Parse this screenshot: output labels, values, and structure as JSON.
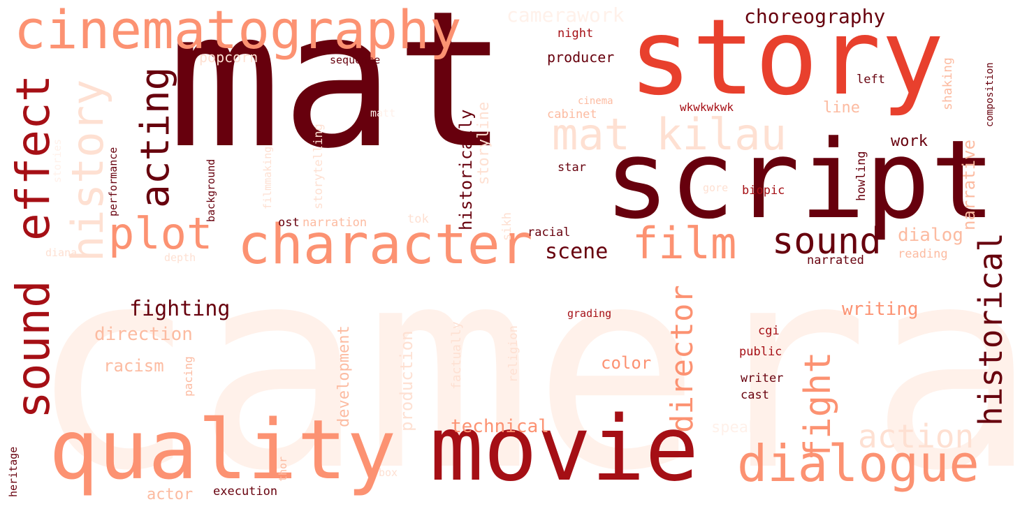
{
  "palette": {
    "darkest": "#67000d",
    "dark": "#a50f15",
    "red": "#e8402d",
    "salmon": "#fc9272",
    "light": "#fcbba1",
    "pale": "#fee0d2",
    "faint": "#fff1ea"
  },
  "words": [
    {
      "text": "camera",
      "color": "faint"
    },
    {
      "text": "mat",
      "color": "darkest"
    },
    {
      "text": "story",
      "color": "red"
    },
    {
      "text": "script",
      "color": "darkest"
    },
    {
      "text": "cinematography",
      "color": "salmon"
    },
    {
      "text": "movie",
      "color": "dark"
    },
    {
      "text": "quality",
      "color": "salmon"
    },
    {
      "text": "dialogue",
      "color": "salmon"
    },
    {
      "text": "character",
      "color": "salmon"
    },
    {
      "text": "effect",
      "color": "dark"
    },
    {
      "text": "sound",
      "color": "dark"
    },
    {
      "text": "film",
      "color": "salmon"
    },
    {
      "text": "plot",
      "color": "salmon"
    },
    {
      "text": "history",
      "color": "pale"
    },
    {
      "text": "mat kilau",
      "color": "pale"
    },
    {
      "text": "acting",
      "color": "darkest"
    },
    {
      "text": "sound",
      "color": "darkest"
    },
    {
      "text": "fight",
      "color": "salmon"
    },
    {
      "text": "historical",
      "color": "darkest"
    },
    {
      "text": "director",
      "color": "salmon"
    },
    {
      "text": "action",
      "color": "pale"
    },
    {
      "text": "choreography",
      "color": "darkest"
    },
    {
      "text": "camerawork",
      "color": "faint"
    },
    {
      "text": "fighting",
      "color": "darkest"
    },
    {
      "text": "scene",
      "color": "darkest"
    },
    {
      "text": "dialog",
      "color": "light"
    },
    {
      "text": "writing",
      "color": "salmon"
    },
    {
      "text": "narrative",
      "color": "light"
    },
    {
      "text": "direction",
      "color": "light"
    },
    {
      "text": "racism",
      "color": "light"
    },
    {
      "text": "technical",
      "color": "salmon"
    },
    {
      "text": "historically",
      "color": "darkest"
    },
    {
      "text": "storyline",
      "color": "pale"
    },
    {
      "text": "development",
      "color": "light"
    },
    {
      "text": "production",
      "color": "pale"
    },
    {
      "text": "color",
      "color": "salmon"
    },
    {
      "text": "work",
      "color": "darkest"
    },
    {
      "text": "line",
      "color": "light"
    },
    {
      "text": "speaker",
      "color": "faint"
    },
    {
      "text": "producer",
      "color": "darkest"
    },
    {
      "text": "popcorn",
      "color": "pale"
    },
    {
      "text": "night",
      "color": "dark"
    },
    {
      "text": "sequence",
      "color": "darkest"
    },
    {
      "text": "left",
      "color": "darkest"
    },
    {
      "text": "composition",
      "color": "darkest"
    },
    {
      "text": "shaking",
      "color": "light"
    },
    {
      "text": "cinema",
      "color": "light"
    },
    {
      "text": "cabinet",
      "color": "light"
    },
    {
      "text": "wkwkwkwk",
      "color": "dark"
    },
    {
      "text": "star",
      "color": "darkest"
    },
    {
      "text": "gore",
      "color": "pale"
    },
    {
      "text": "biopic",
      "color": "dark"
    },
    {
      "text": "howling",
      "color": "darkest"
    },
    {
      "text": "racial",
      "color": "darkest"
    },
    {
      "text": "ost",
      "color": "darkest"
    },
    {
      "text": "narration",
      "color": "light"
    },
    {
      "text": "tok",
      "color": "pale"
    },
    {
      "text": "narrated",
      "color": "darkest"
    },
    {
      "text": "reading",
      "color": "light"
    },
    {
      "text": "grading",
      "color": "dark"
    },
    {
      "text": "cgi",
      "color": "dark"
    },
    {
      "text": "public",
      "color": "dark"
    },
    {
      "text": "writer",
      "color": "darkest"
    },
    {
      "text": "cast",
      "color": "darkest"
    },
    {
      "text": "religion",
      "color": "pale"
    },
    {
      "text": "factually",
      "color": "pale"
    },
    {
      "text": "sikh",
      "color": "pale"
    },
    {
      "text": "storytelling",
      "color": "pale"
    },
    {
      "text": "filmmaking",
      "color": "pale"
    },
    {
      "text": "background",
      "color": "darkest"
    },
    {
      "text": "performance",
      "color": "darkest"
    },
    {
      "text": "stories",
      "color": "faint"
    },
    {
      "text": "diana",
      "color": "pale"
    },
    {
      "text": "depth",
      "color": "pale"
    },
    {
      "text": "pacing",
      "color": "light"
    },
    {
      "text": "heritage",
      "color": "darkest"
    },
    {
      "text": "thor",
      "color": "light"
    },
    {
      "text": "box",
      "color": "pale"
    },
    {
      "text": "actor",
      "color": "light"
    },
    {
      "text": "execution",
      "color": "darkest"
    },
    {
      "text": "matt",
      "color": "faint"
    }
  ]
}
